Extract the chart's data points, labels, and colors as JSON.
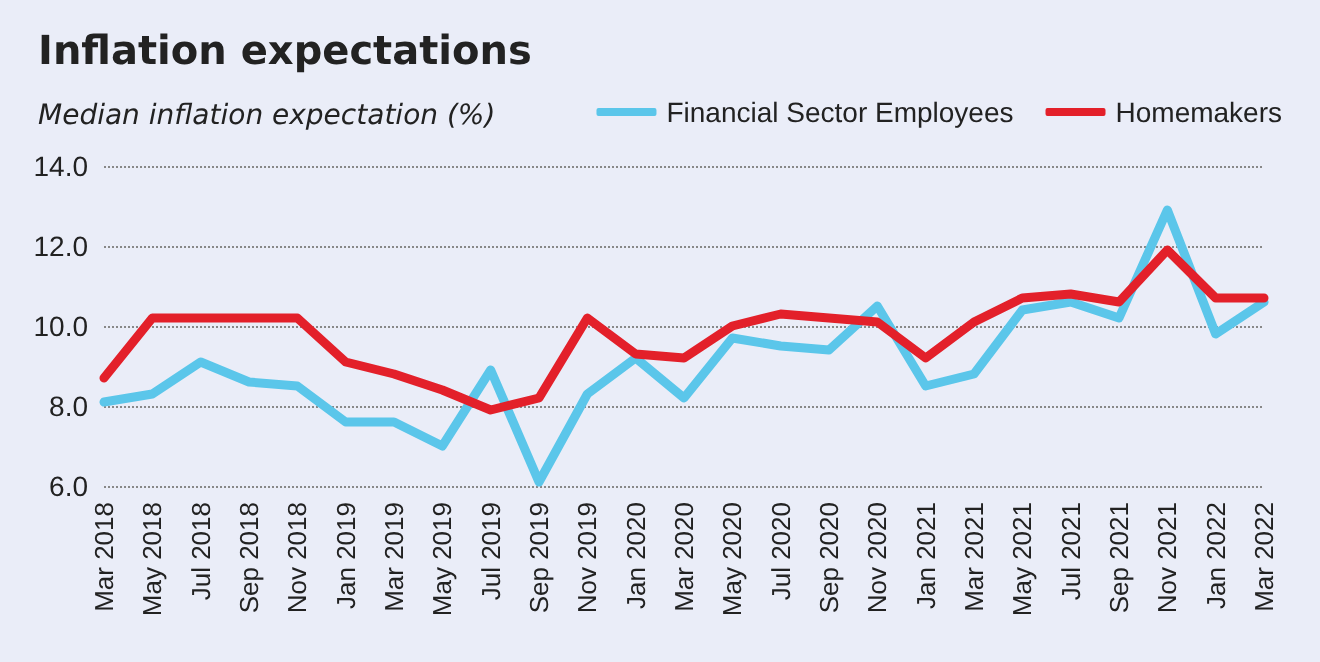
{
  "chart_data": {
    "type": "line",
    "title": "Inflation expectations",
    "subtitle": "Median inflation expectation (%)",
    "categories": [
      "Mar 2018",
      "May 2018",
      "Jul 2018",
      "Sep 2018",
      "Nov 2018",
      "Jan 2019",
      "Mar 2019",
      "May 2019",
      "Jul 2019",
      "Sep 2019",
      "Nov 2019",
      "Jan 2020",
      "Mar 2020",
      "May 2020",
      "Jul 2020",
      "Sep 2020",
      "Nov 2020",
      "Jan 2021",
      "Mar 2021",
      "May 2021",
      "Jul 2021",
      "Sep 2021",
      "Nov 2021",
      "Jan 2022",
      "Mar 2022"
    ],
    "series": [
      {
        "name": "Financial Sector Employees",
        "color": "#5bc6ea",
        "values": [
          8.1,
          8.3,
          9.1,
          8.6,
          8.5,
          7.6,
          7.6,
          7.0,
          8.9,
          6.1,
          8.3,
          9.2,
          8.2,
          9.7,
          9.5,
          9.4,
          10.5,
          8.5,
          8.8,
          10.4,
          10.6,
          10.2,
          12.9,
          9.8,
          10.6
        ]
      },
      {
        "name": "Homemakers",
        "color": "#e3202a",
        "values": [
          8.7,
          10.2,
          10.2,
          10.2,
          10.2,
          9.1,
          8.8,
          8.4,
          7.9,
          8.2,
          10.2,
          9.3,
          9.2,
          10.0,
          10.3,
          10.2,
          10.1,
          9.2,
          10.1,
          10.7,
          10.8,
          10.6,
          11.9,
          10.7,
          10.7
        ]
      }
    ],
    "ylim": [
      6,
      14
    ],
    "yticks": [
      {
        "value": 6,
        "label": "6.0"
      },
      {
        "value": 8,
        "label": "8.0"
      },
      {
        "value": 10,
        "label": "10.0"
      },
      {
        "value": 12,
        "label": "12.0"
      },
      {
        "value": 14,
        "label": "14.0"
      }
    ],
    "grid": "y",
    "legend": "top right",
    "marker": "none",
    "line_style": "solid"
  }
}
